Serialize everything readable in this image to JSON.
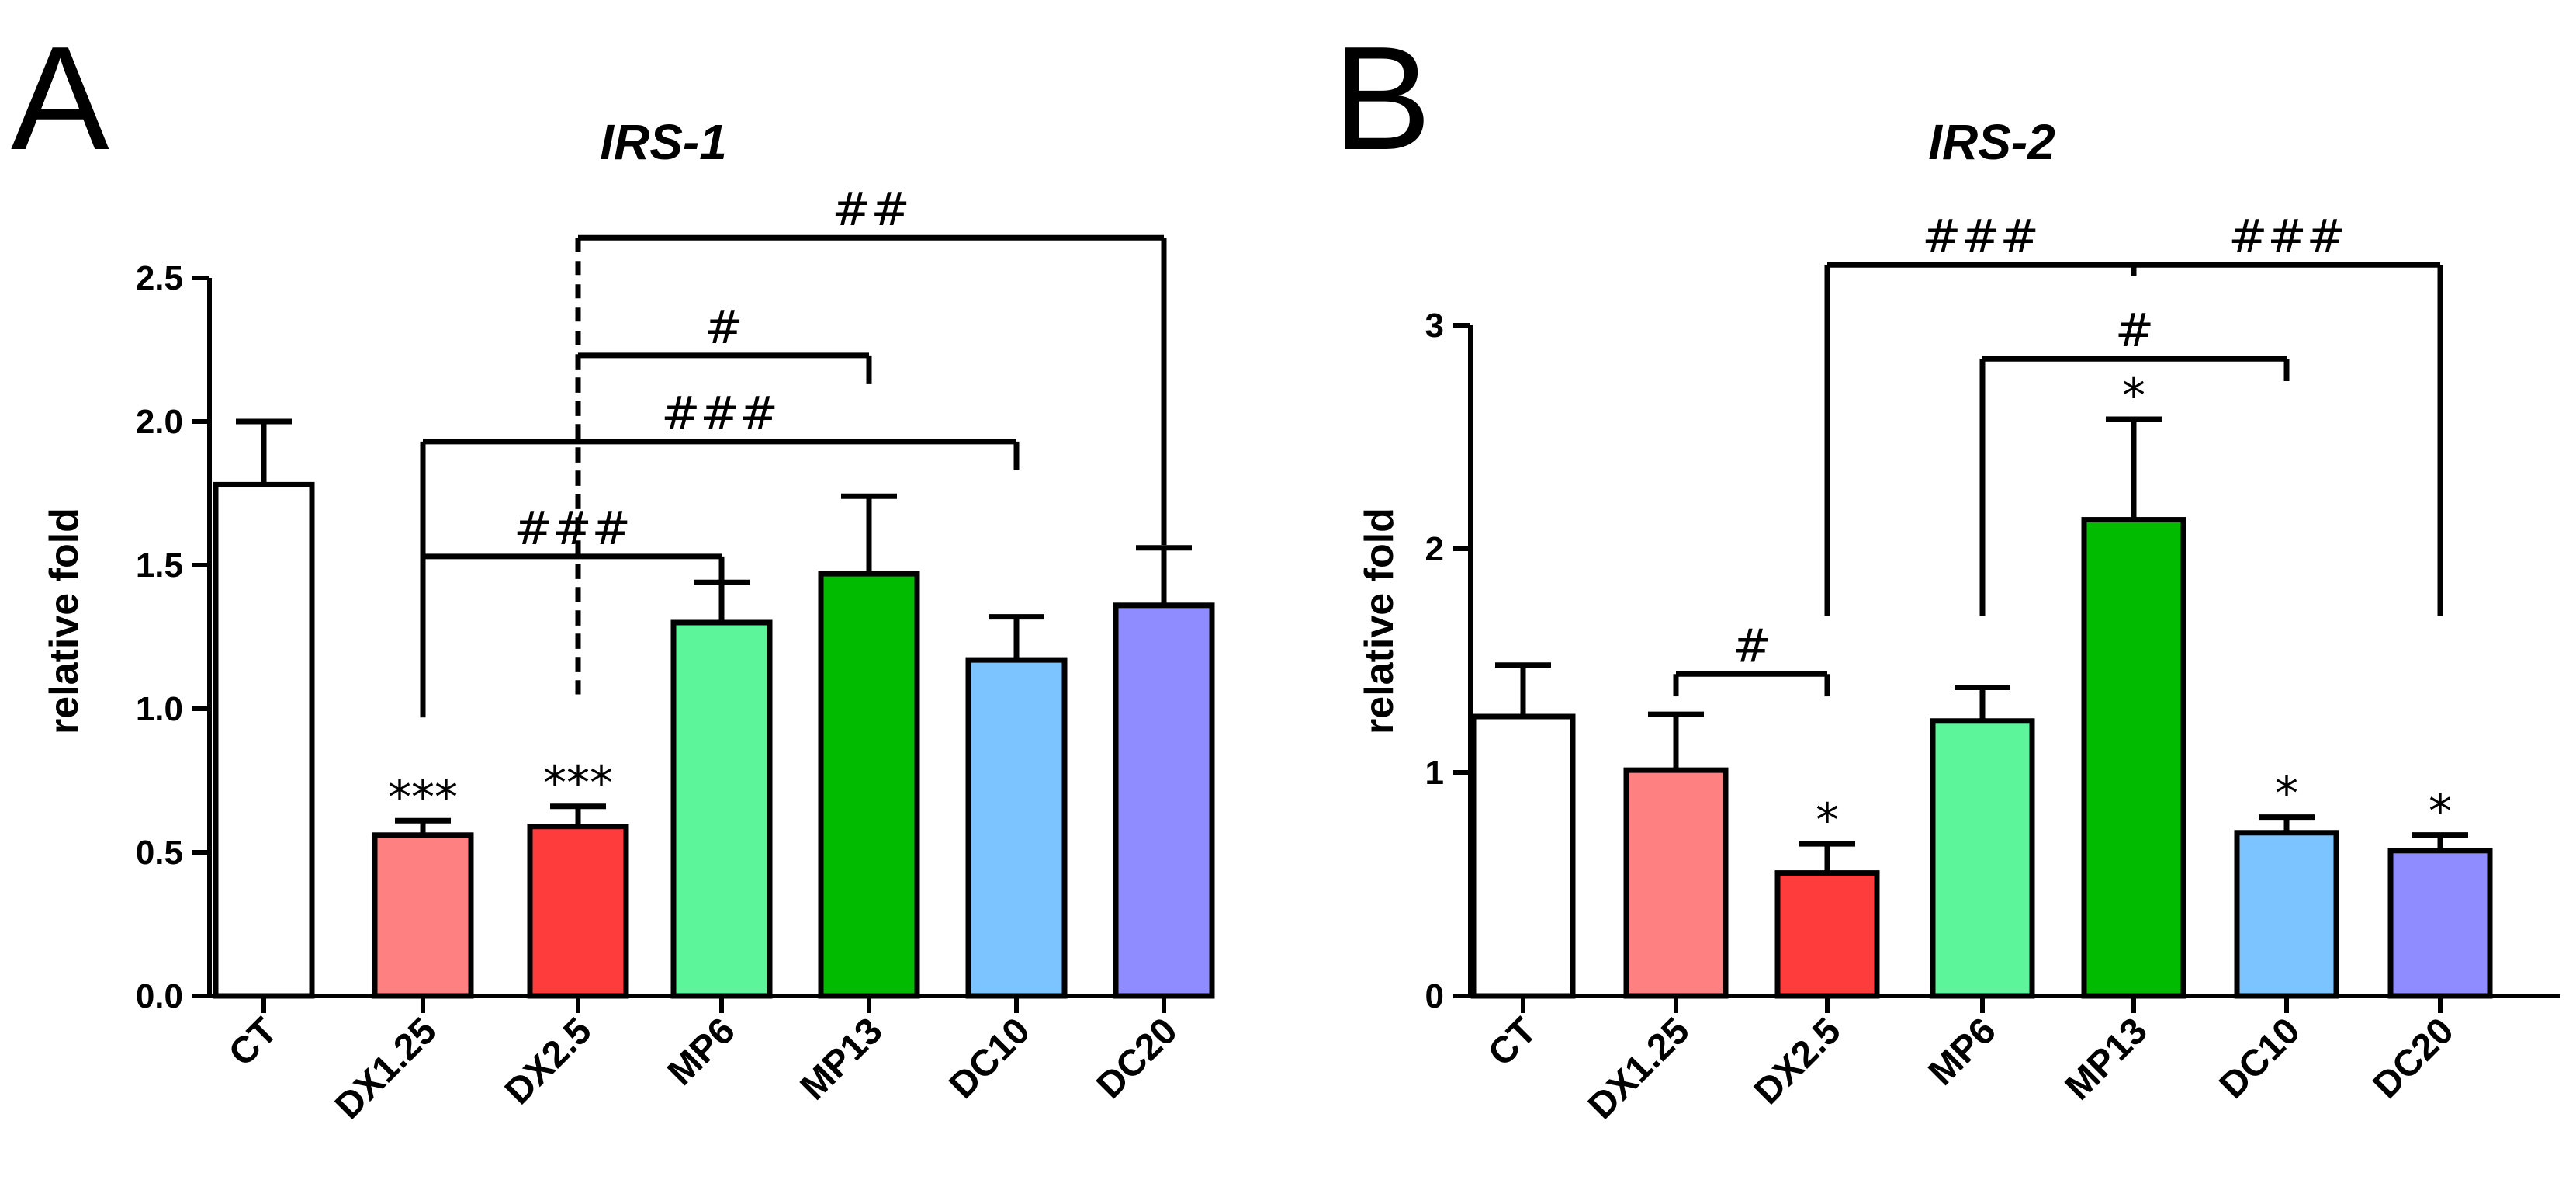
{
  "colors": {
    "CT": "#ffffff",
    "DX1.25": "#ff8080",
    "DX2.5": "#ff3c3c",
    "MP6": "#5cf59a",
    "MP13": "#00bb00",
    "DC10": "#7cc4ff",
    "DC20": "#8e8cff"
  },
  "chart_data": [
    {
      "type": "bar",
      "panel": "A",
      "title": "IRS-1",
      "ylabel": "relative fold",
      "xlabel": "",
      "ylim": [
        0,
        2.5
      ],
      "yticks": [
        0.0,
        0.5,
        1.0,
        1.5,
        2.0,
        2.5
      ],
      "ytick_labels": [
        "0.0",
        "0.5",
        "1.0",
        "1.5",
        "2.0",
        "2.5"
      ],
      "categories": [
        "CT",
        "DX1.25",
        "DX2.5",
        "MP6",
        "MP13",
        "DC10",
        "DC20"
      ],
      "values": [
        1.78,
        0.56,
        0.59,
        1.3,
        1.47,
        1.17,
        1.36
      ],
      "errors": [
        0.22,
        0.05,
        0.07,
        0.14,
        0.27,
        0.15,
        0.2
      ],
      "annotations": [
        "",
        "***",
        "***",
        "",
        "",
        "",
        ""
      ],
      "comparisons": [
        {
          "from": 2,
          "to": 6,
          "y": 2.64,
          "label": "##",
          "drop_to": 1.57,
          "from_drop_to": 1.05,
          "from_dashed": true
        },
        {
          "from": 2,
          "to": 4,
          "y": 2.23,
          "label": "#",
          "drop_to": 2.13,
          "from_drop_to": 1.05,
          "from_dashed": true
        },
        {
          "from": 1,
          "to": 5,
          "y": 1.93,
          "label": "###",
          "drop_to": 1.83,
          "from_drop_to": 0.97,
          "from_dashed": false
        },
        {
          "from": 1,
          "to": 3,
          "y": 1.53,
          "label": "###",
          "drop_to": 1.43,
          "from_drop_to": 0.97,
          "from_dashed": false
        }
      ]
    },
    {
      "type": "bar",
      "panel": "B",
      "title": "IRS-2",
      "ylabel": "relative fold",
      "xlabel": "",
      "ylim": [
        0,
        3
      ],
      "yticks": [
        0,
        1,
        2,
        3
      ],
      "ytick_labels": [
        "0",
        "1",
        "2",
        "3"
      ],
      "categories": [
        "CT",
        "DX1.25",
        "DX2.5",
        "MP6",
        "MP13",
        "DC10",
        "DC20"
      ],
      "values": [
        1.25,
        1.01,
        0.55,
        1.23,
        2.13,
        0.73,
        0.65
      ],
      "errors": [
        0.23,
        0.25,
        0.13,
        0.15,
        0.45,
        0.07,
        0.07
      ],
      "annotations": [
        "",
        "",
        "*",
        "",
        "*",
        "*",
        "*"
      ],
      "comparisons": [
        {
          "from": 2,
          "to": 4,
          "y": 3.27,
          "label": "###",
          "drop_to": 3.22,
          "from_drop_to": 1.7,
          "from_dashed": false
        },
        {
          "from": 4,
          "to": 6,
          "y": 3.27,
          "label": "###",
          "drop_to": 1.7,
          "from_drop_to": 3.22,
          "from_dashed": false
        },
        {
          "from": 3,
          "to": 5,
          "y": 2.85,
          "label": "#",
          "drop_to": 2.75,
          "from_drop_to": 1.7,
          "from_dashed": false
        },
        {
          "from": 1,
          "to": 2,
          "y": 1.44,
          "label": "#",
          "drop_to": 1.34,
          "from_drop_to": 1.34,
          "from_dashed": false
        }
      ]
    }
  ]
}
